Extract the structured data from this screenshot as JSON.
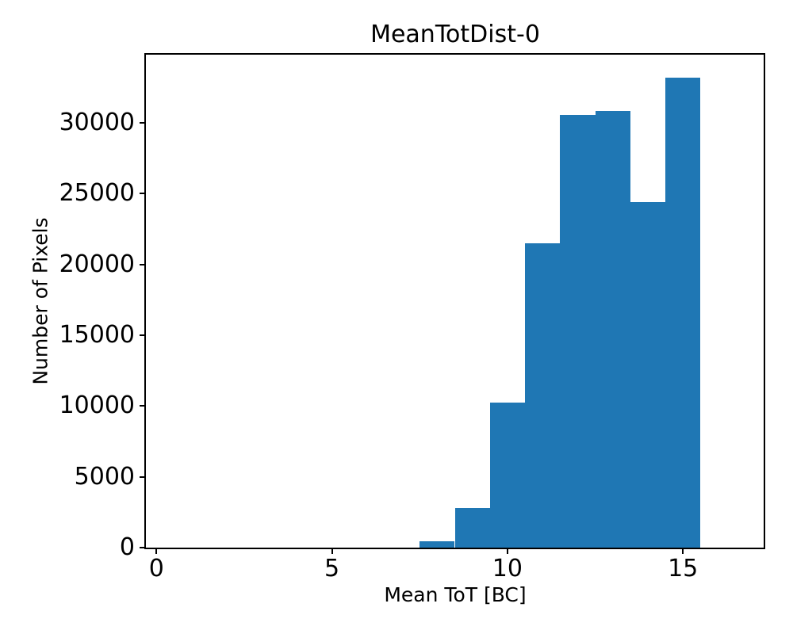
{
  "figure": {
    "background": "#ffffff",
    "text_color": "#000000"
  },
  "chart_data": {
    "type": "bar",
    "subtype": "histogram",
    "title": "MeanTotDist-0",
    "xlabel": "Mean ToT [BC]",
    "ylabel": "Number of Pixels",
    "bin_edges": [
      7.5,
      8.5,
      9.5,
      10.5,
      11.5,
      12.5,
      13.5,
      14.5,
      15.5
    ],
    "values": [
      450,
      2800,
      10250,
      21500,
      30550,
      30800,
      24400,
      33150
    ],
    "x_ticks": [
      0,
      5,
      10,
      15
    ],
    "y_ticks": [
      0,
      5000,
      10000,
      15000,
      20000,
      25000,
      30000
    ],
    "xlim": [
      -0.3,
      17.3
    ],
    "ylim": [
      0,
      34800
    ],
    "bar_color": "#1f77b4",
    "axis_color": "#000000",
    "grid": false,
    "legend_position": "none"
  }
}
